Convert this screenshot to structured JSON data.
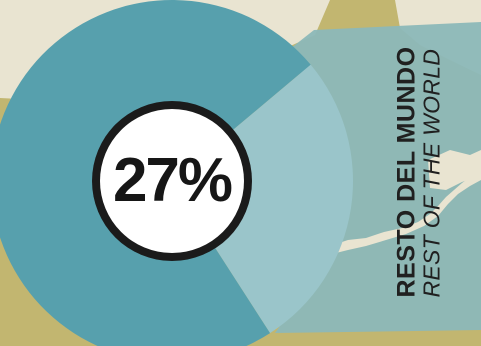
{
  "chart_data": {
    "type": "pie",
    "center_label": "27%",
    "series_label_es": "RESTO DEL MUNDO",
    "series_label_en": "REST OF THE WORLD",
    "slices": [
      {
        "label": "RESTO DEL MUNDO",
        "value": 27,
        "color": "#9ac5ca"
      },
      {
        "label": "",
        "value": 73,
        "color": "#57a0ad"
      }
    ],
    "colors": {
      "background": "#c2b670",
      "map_light": "#e9e4d1",
      "map_teal": "#8cb8b8",
      "ring": "#1b1b1b",
      "hole": "#ffffff"
    }
  }
}
